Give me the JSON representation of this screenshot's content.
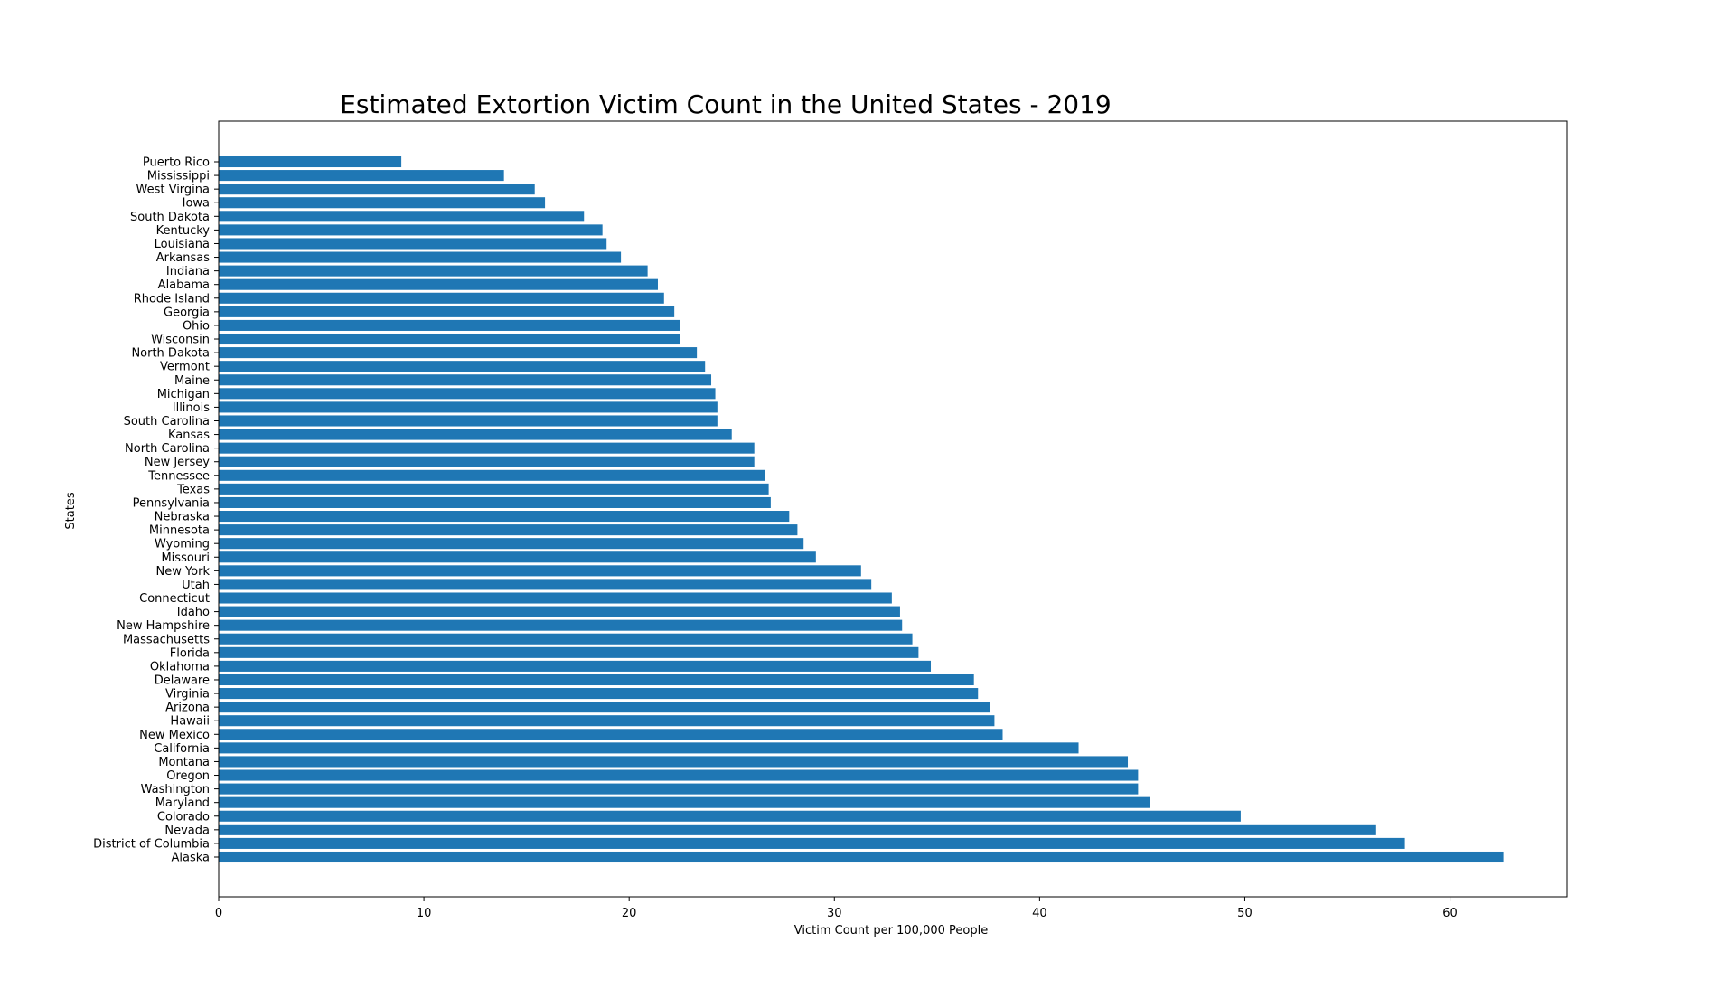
{
  "chart_data": {
    "type": "bar",
    "orientation": "horizontal",
    "title": "Estimated Extortion Victim Count in the United States - 2019",
    "xlabel": "Victim Count per 100,000 People",
    "ylabel": "States",
    "xlim": [
      0,
      65.7
    ],
    "xticks": [
      0,
      10,
      20,
      30,
      40,
      50,
      60
    ],
    "grid": false,
    "bar_color": "#1f77b4",
    "categories": [
      "Puerto Rico",
      "Mississippi",
      "West Virgina",
      "Iowa",
      "South Dakota",
      "Kentucky",
      "Louisiana",
      "Arkansas",
      "Indiana",
      "Alabama",
      "Rhode Island",
      "Georgia",
      "Ohio",
      "Wisconsin",
      "North Dakota",
      "Vermont",
      "Maine",
      "Michigan",
      "Illinois",
      "South Carolina",
      "Kansas",
      "North Carolina",
      "New Jersey",
      "Tennessee",
      "Texas",
      "Pennsylvania",
      "Nebraska",
      "Minnesota",
      "Wyoming",
      "Missouri",
      "New York",
      "Utah",
      "Connecticut",
      "Idaho",
      "New Hampshire",
      "Massachusetts",
      "Florida",
      "Oklahoma",
      "Delaware",
      "Virginia",
      "Arizona",
      "Hawaii",
      "New Mexico",
      "California",
      "Montana",
      "Oregon",
      "Washington",
      "Maryland",
      "Colorado",
      "Nevada",
      "District of Columbia",
      "Alaska"
    ],
    "values": [
      8.9,
      13.9,
      15.4,
      15.9,
      17.8,
      18.7,
      18.9,
      19.6,
      20.9,
      21.4,
      21.7,
      22.2,
      22.5,
      22.5,
      23.3,
      23.7,
      24.0,
      24.2,
      24.3,
      24.3,
      25.0,
      26.1,
      26.1,
      26.6,
      26.8,
      26.9,
      27.8,
      28.2,
      28.5,
      29.1,
      31.3,
      31.8,
      32.8,
      33.2,
      33.3,
      33.8,
      34.1,
      34.7,
      36.8,
      37.0,
      37.6,
      37.8,
      38.2,
      41.9,
      44.3,
      44.8,
      44.8,
      45.4,
      49.8,
      56.4,
      57.8,
      62.6
    ]
  }
}
